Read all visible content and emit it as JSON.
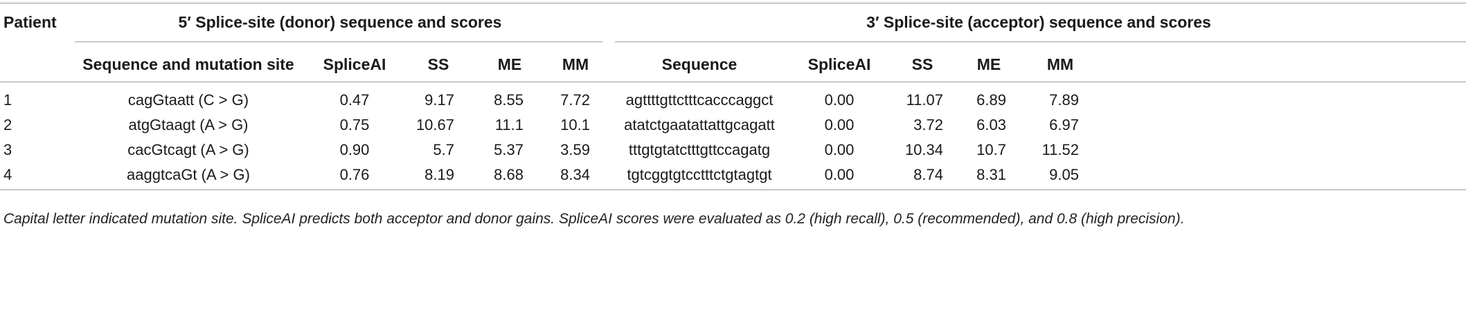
{
  "table": {
    "header": {
      "patient": "Patient",
      "group5": "5′ Splice-site (donor) sequence and scores",
      "group3": "3′ Splice-site (acceptor) sequence and scores",
      "seq_mut": "Sequence and mutation site",
      "spliceai_5": "SpliceAI",
      "ss_5": "SS",
      "me_5": "ME",
      "mm_5": "MM",
      "seq": "Sequence",
      "spliceai_3": "SpliceAI",
      "ss_3": "SS",
      "me_3": "ME",
      "mm_3": "MM"
    },
    "rows": [
      {
        "patient": "1",
        "seq5": "cagGtaatt (C > G)",
        "spliceai5": "0.47",
        "ss5": "9.17",
        "me5": "8.55",
        "mm5": "7.72",
        "seq3": "agttttgttctttcacccaggct",
        "spliceai3": "0.00",
        "ss3": "11.07",
        "me3": "6.89",
        "mm3": "7.89"
      },
      {
        "patient": "2",
        "seq5": "atgGtaagt (A > G)",
        "spliceai5": "0.75",
        "ss5": "10.67",
        "me5": "11.1",
        "mm5": "10.1",
        "seq3": "atatctgaatattattgcagatt",
        "spliceai3": "0.00",
        "ss3": "3.72",
        "me3": "6.03",
        "mm3": "6.97"
      },
      {
        "patient": "3",
        "seq5": "cacGtcagt (A > G)",
        "spliceai5": "0.90",
        "ss5": "5.7",
        "me5": "5.37",
        "mm5": "3.59",
        "seq3": "tttgtgtatctttgttccagatg",
        "spliceai3": "0.00",
        "ss3": "10.34",
        "me3": "10.7",
        "mm3": "11.52"
      },
      {
        "patient": "4",
        "seq5": "aaggtcaGt (A > G)",
        "spliceai5": "0.76",
        "ss5": "8.19",
        "me5": "8.68",
        "mm5": "8.34",
        "seq3": "tgtcggtgtcctttctgtagtgt",
        "spliceai3": "0.00",
        "ss3": "8.74",
        "me3": "8.31",
        "mm3": "9.05"
      }
    ],
    "footnote": "Capital letter indicated mutation site. SpliceAI predicts both acceptor and donor gains. SpliceAI scores were evaluated as 0.2 (high recall), 0.5 (recommended), and 0.8 (high precision)."
  }
}
